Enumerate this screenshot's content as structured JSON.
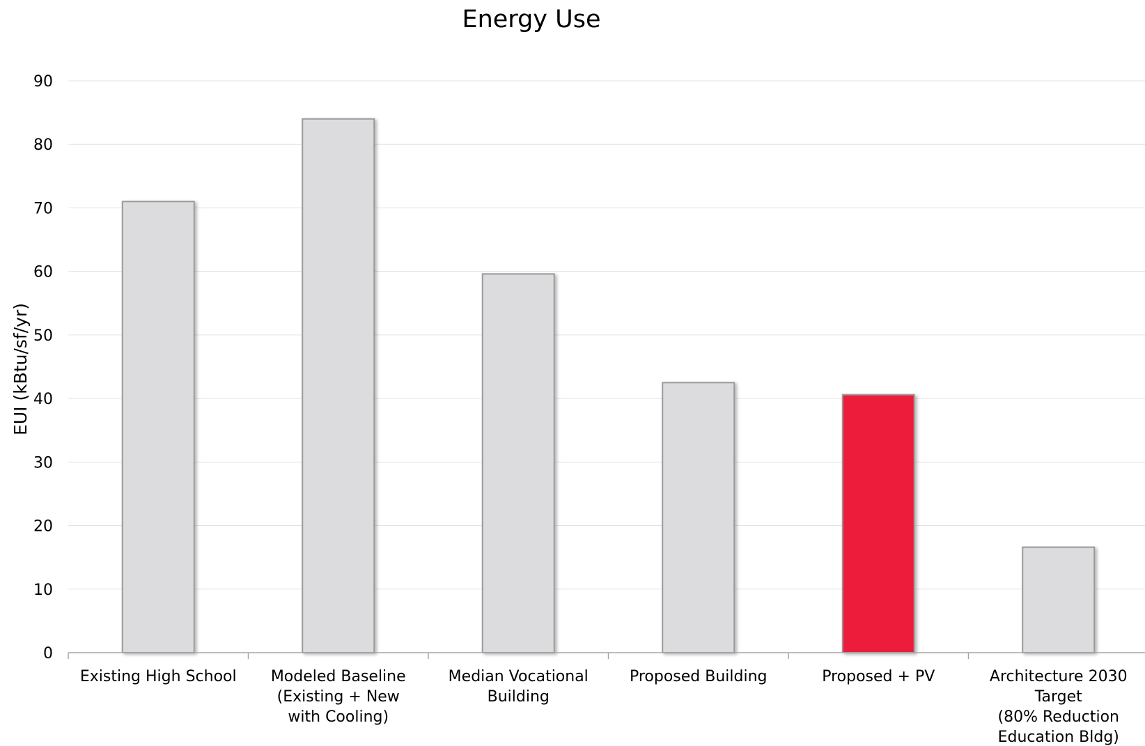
{
  "chart_data": {
    "type": "bar",
    "title": "Energy Use",
    "xlabel": "",
    "ylabel": "EUI (kBtu/sf/yr)",
    "ylim": [
      0,
      90
    ],
    "yticks": [
      0,
      10,
      20,
      30,
      40,
      50,
      60,
      70,
      80,
      90
    ],
    "grid": true,
    "legend": "none",
    "categories": [
      [
        "Existing High School"
      ],
      [
        "Modeled Baseline",
        "(Existing + New",
        "with Cooling)"
      ],
      [
        "Median Vocational",
        "Building"
      ],
      [
        "Proposed Building"
      ],
      [
        "Proposed + PV"
      ],
      [
        "Architecture 2030",
        "Target",
        "(80% Reduction",
        "Education Bldg)"
      ]
    ],
    "values": [
      71,
      84,
      59.6,
      42.5,
      40.6,
      16.6
    ],
    "bar_colors": [
      "#dcdcde",
      "#dcdcde",
      "#dcdcde",
      "#dcdcde",
      "#ed1c3a",
      "#dcdcde"
    ]
  }
}
